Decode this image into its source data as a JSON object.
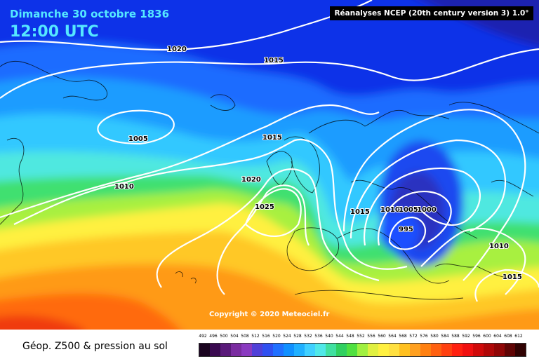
{
  "header": {
    "date": "Dimanche 30 octobre 1836",
    "time": "12:00 UTC",
    "source": "Réanalyses NCEP (20th century version 3) 1.0°"
  },
  "copyright": "Copyright © 2020 Meteociel.fr",
  "legend": {
    "title": "Géop. Z500 & pression au sol",
    "scale_values": [
      "492",
      "496",
      "500",
      "504",
      "508",
      "512",
      "516",
      "520",
      "524",
      "528",
      "532",
      "536",
      "540",
      "544",
      "548",
      "552",
      "556",
      "560",
      "564",
      "568",
      "572",
      "576",
      "580",
      "584",
      "588",
      "592",
      "596",
      "600",
      "604",
      "608",
      "612"
    ],
    "scale_colors": [
      "#1a0420",
      "#3a0a50",
      "#5a1a7a",
      "#7a2ca0",
      "#8a3ac0",
      "#5040d8",
      "#3050f0",
      "#2070ff",
      "#1090ff",
      "#20b0ff",
      "#40d0ff",
      "#50e8e8",
      "#40e0a0",
      "#30d060",
      "#50e040",
      "#a0f040",
      "#e0f040",
      "#fff040",
      "#ffe040",
      "#ffc020",
      "#ffa020",
      "#ff8010",
      "#ff6010",
      "#ff4010",
      "#ff2010",
      "#f01010",
      "#d00a0a",
      "#b00808",
      "#900606",
      "#600404",
      "#300202"
    ]
  },
  "isobars": [
    {
      "value": "1020",
      "text": "1020"
    },
    {
      "value": "1015",
      "text": "1015"
    },
    {
      "value": "1005",
      "text": "1005"
    },
    {
      "value": "1015",
      "text": "1015"
    },
    {
      "value": "1010",
      "text": "1010"
    },
    {
      "value": "1020",
      "text": "1020"
    },
    {
      "value": "1025",
      "text": "1025"
    },
    {
      "value": "1015",
      "text": "1015"
    },
    {
      "value": "1010",
      "text": "1010"
    },
    {
      "value": "1005",
      "text": "1005"
    },
    {
      "value": "1000",
      "text": "1000"
    },
    {
      "value": "995",
      "text": "995"
    },
    {
      "value": "1010",
      "text": "1010"
    },
    {
      "value": "1015",
      "text": "1015"
    }
  ]
}
